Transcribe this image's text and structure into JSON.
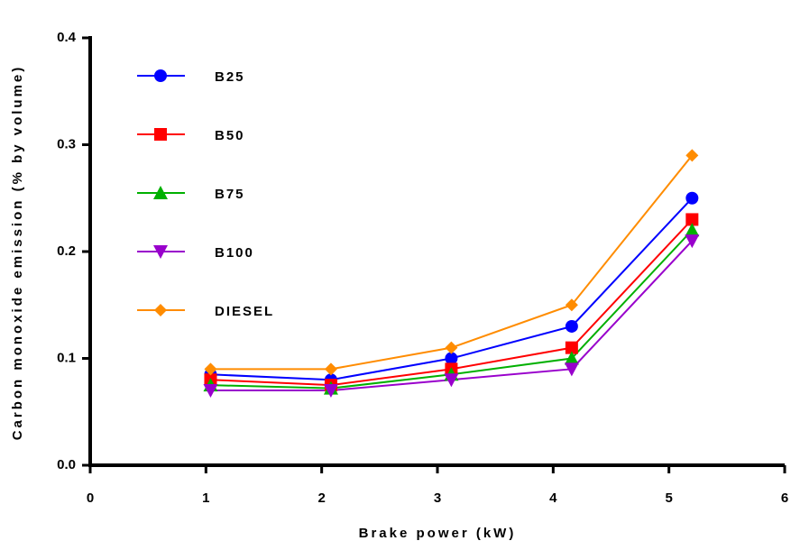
{
  "chart_data": {
    "type": "line",
    "x_label": "Brake power (kW)",
    "y_label": "Carbon monoxide emission (% by volume)",
    "x": [
      1.04,
      2.08,
      3.12,
      4.16,
      5.2
    ],
    "series": [
      {
        "name": "B25",
        "color": "#0000ff",
        "marker": "circle",
        "values": [
          0.085,
          0.08,
          0.1,
          0.13,
          0.25
        ]
      },
      {
        "name": "B50",
        "color": "#ff0000",
        "marker": "square",
        "values": [
          0.08,
          0.075,
          0.09,
          0.11,
          0.23
        ]
      },
      {
        "name": "B75",
        "color": "#00b000",
        "marker": "triangle-up",
        "values": [
          0.075,
          0.072,
          0.085,
          0.1,
          0.22
        ]
      },
      {
        "name": "B100",
        "color": "#9900cc",
        "marker": "triangle-down",
        "values": [
          0.07,
          0.07,
          0.08,
          0.09,
          0.21
        ]
      },
      {
        "name": "DIESEL",
        "color": "#ff8c00",
        "marker": "diamond",
        "values": [
          0.09,
          0.09,
          0.11,
          0.15,
          0.29
        ]
      }
    ],
    "xlim": [
      0,
      6
    ],
    "xticks": [
      0,
      1,
      2,
      3,
      4,
      5,
      6
    ],
    "ylim": [
      0,
      0.4
    ],
    "yticks": [
      {
        "value": 0,
        "label": "0.0"
      },
      0.1,
      0.2,
      0.3,
      0.4
    ],
    "legend": "upper left"
  }
}
